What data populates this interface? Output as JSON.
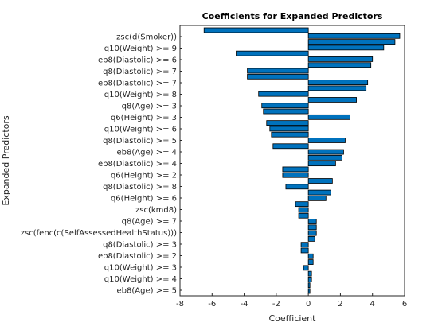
{
  "chart_data": {
    "type": "bar",
    "orientation": "horizontal",
    "title": "Coefficients for Expanded Predictors",
    "xlabel": "Coefficient",
    "ylabel": "Expanded Predictors",
    "xlim": [
      -8,
      6
    ],
    "xticks": [
      -8,
      -6,
      -4,
      -2,
      0,
      2,
      4,
      6
    ],
    "grid": false,
    "legend": "none",
    "bar_color": "#0072BD",
    "labeled_categories": [
      "zsc(d(Smoker))",
      "q10(Weight) >= 9",
      "eb8(Diastolic) >= 6",
      "q8(Diastolic) >= 7",
      "eb8(Diastolic) >= 7",
      "q10(Weight) >= 8",
      "q8(Age) >= 3",
      "q6(Height) >= 3",
      "q10(Weight) >= 6",
      "q8(Diastolic) >= 5",
      "eb8(Age) >= 4",
      "eb8(Diastolic) >= 4",
      "q6(Height) >= 2",
      "q8(Diastolic) >= 8",
      "q6(Height) >= 6",
      "zsc(kmd8)",
      "q8(Age) >= 7",
      "zsc(fenc(c(SelfAssessedHealthStatus)))",
      "q8(Diastolic) >= 3",
      "eb8(Diastolic) >= 2",
      "q10(Weight) >= 3",
      "q10(Weight) >= 4",
      "eb8(Age) >= 5"
    ],
    "values": [
      -6.5,
      5.7,
      5.4,
      4.7,
      -4.5,
      4.0,
      3.9,
      -3.8,
      -3.8,
      3.7,
      3.6,
      -3.1,
      3.0,
      -2.9,
      -2.8,
      2.6,
      -2.6,
      -2.4,
      -2.3,
      2.3,
      -2.2,
      2.2,
      2.1,
      1.7,
      -1.6,
      -1.6,
      1.5,
      -1.4,
      1.4,
      1.1,
      -0.8,
      -0.6,
      -0.6,
      0.5,
      0.5,
      0.5,
      0.4,
      -0.45,
      -0.45,
      0.3,
      0.3,
      -0.3,
      0.2,
      0.2,
      0.1,
      0.1
    ]
  }
}
